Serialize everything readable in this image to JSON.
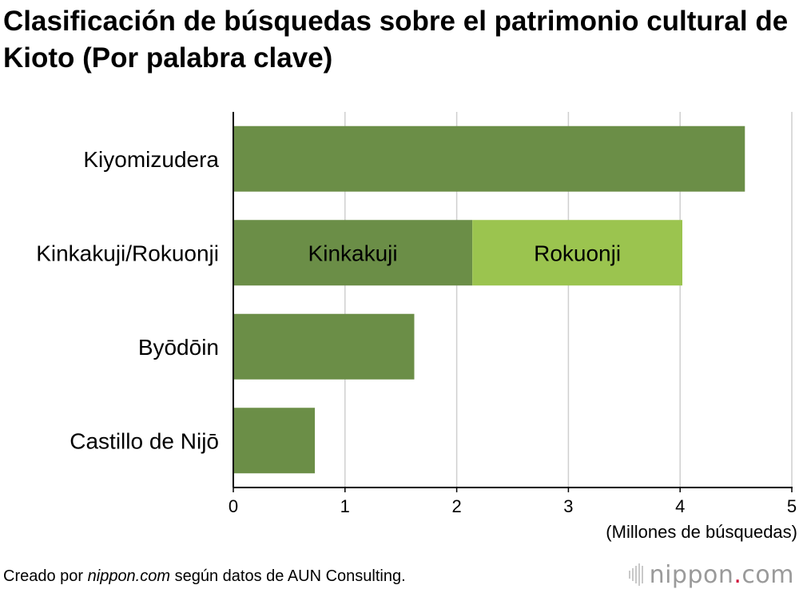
{
  "title": "Clasificación de búsquedas sobre el patrimonio cultural de Kioto (Por palabra clave)",
  "chart_data": {
    "type": "bar",
    "orientation": "horizontal",
    "stacked": true,
    "categories": [
      "Kiyomizudera",
      "Kinkakuji/Rokuonji",
      "Byōdōin",
      "Castillo de Nijō"
    ],
    "series": [
      {
        "name": "Kinkakuji",
        "values": [
          4.58,
          2.14,
          1.62,
          0.73
        ],
        "color": "#6b8e47"
      },
      {
        "name": "Rokuonji",
        "values": [
          0,
          1.88,
          0,
          0
        ],
        "color": "#9bc44f"
      }
    ],
    "segment_labels": [
      {
        "category": "Kinkakuji/Rokuonji",
        "series": "Kinkakuji",
        "text": "Kinkakuji"
      },
      {
        "category": "Kinkakuji/Rokuonji",
        "series": "Rokuonji",
        "text": "Rokuonji"
      }
    ],
    "xlim": [
      0,
      5
    ],
    "xticks": [
      "0",
      "1",
      "2",
      "3",
      "4",
      "5"
    ],
    "xlabel": "(Millones de búsquedas)",
    "ylabel": "",
    "grid": true
  },
  "footer": {
    "source_prefix": "Creado por ",
    "source_site": "nippon.com",
    "source_suffix": " según datos de AUN Consulting.",
    "logo_main": "nippon",
    "logo_dot": ".",
    "logo_tld": "com"
  }
}
